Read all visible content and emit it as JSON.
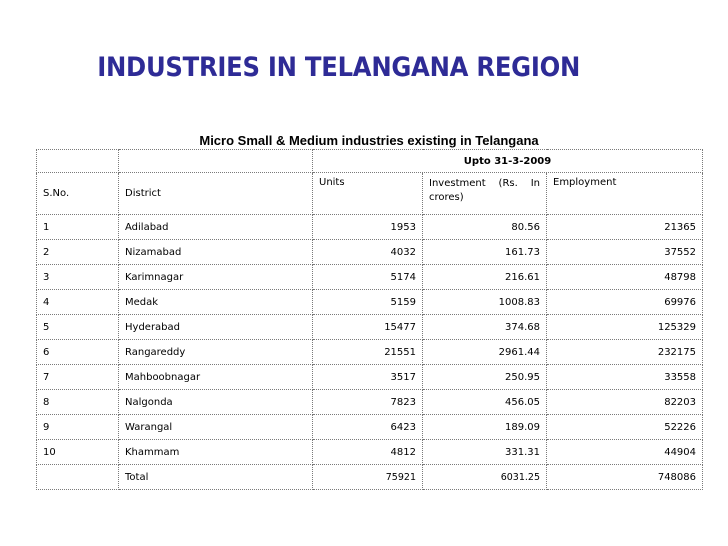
{
  "title": "INDUSTRIES IN TELANGANA REGION",
  "subtitle": "Micro Small & Medium industries existing in Telangana",
  "table": {
    "period": "Upto 31-3-2009",
    "headers": [
      "S.No.",
      "District",
      "Units",
      "Investment (Rs. In crores)",
      "Employment"
    ],
    "rows": [
      {
        "sno": "1",
        "district": "Adilabad",
        "units": "1953",
        "investment": "80.56",
        "employment": "21365"
      },
      {
        "sno": "2",
        "district": "Nizamabad",
        "units": "4032",
        "investment": "161.73",
        "employment": "37552"
      },
      {
        "sno": "3",
        "district": "Karimnagar",
        "units": "5174",
        "investment": "216.61",
        "employment": "48798"
      },
      {
        "sno": "4",
        "district": "Medak",
        "units": "5159",
        "investment": "1008.83",
        "employment": "69976"
      },
      {
        "sno": "5",
        "district": "Hyderabad",
        "units": "15477",
        "investment": "374.68",
        "employment": "125329"
      },
      {
        "sno": "6",
        "district": "Rangareddy",
        "units": "21551",
        "investment": "2961.44",
        "employment": "232175"
      },
      {
        "sno": "7",
        "district": "Mahboobnagar",
        "units": "3517",
        "investment": "250.95",
        "employment": "33558"
      },
      {
        "sno": "8",
        "district": "Nalgonda",
        "units": "7823",
        "investment": "456.05",
        "employment": "82203"
      },
      {
        "sno": "9",
        "district": "Warangal",
        "units": "6423",
        "investment": "189.09",
        "employment": "52226"
      },
      {
        "sno": "10",
        "district": "Khammam",
        "units": "4812",
        "investment": "331.31",
        "employment": "44904"
      }
    ],
    "total": {
      "label": "Total",
      "units": "75921",
      "investment": "6031.25",
      "employment": "748086"
    }
  }
}
